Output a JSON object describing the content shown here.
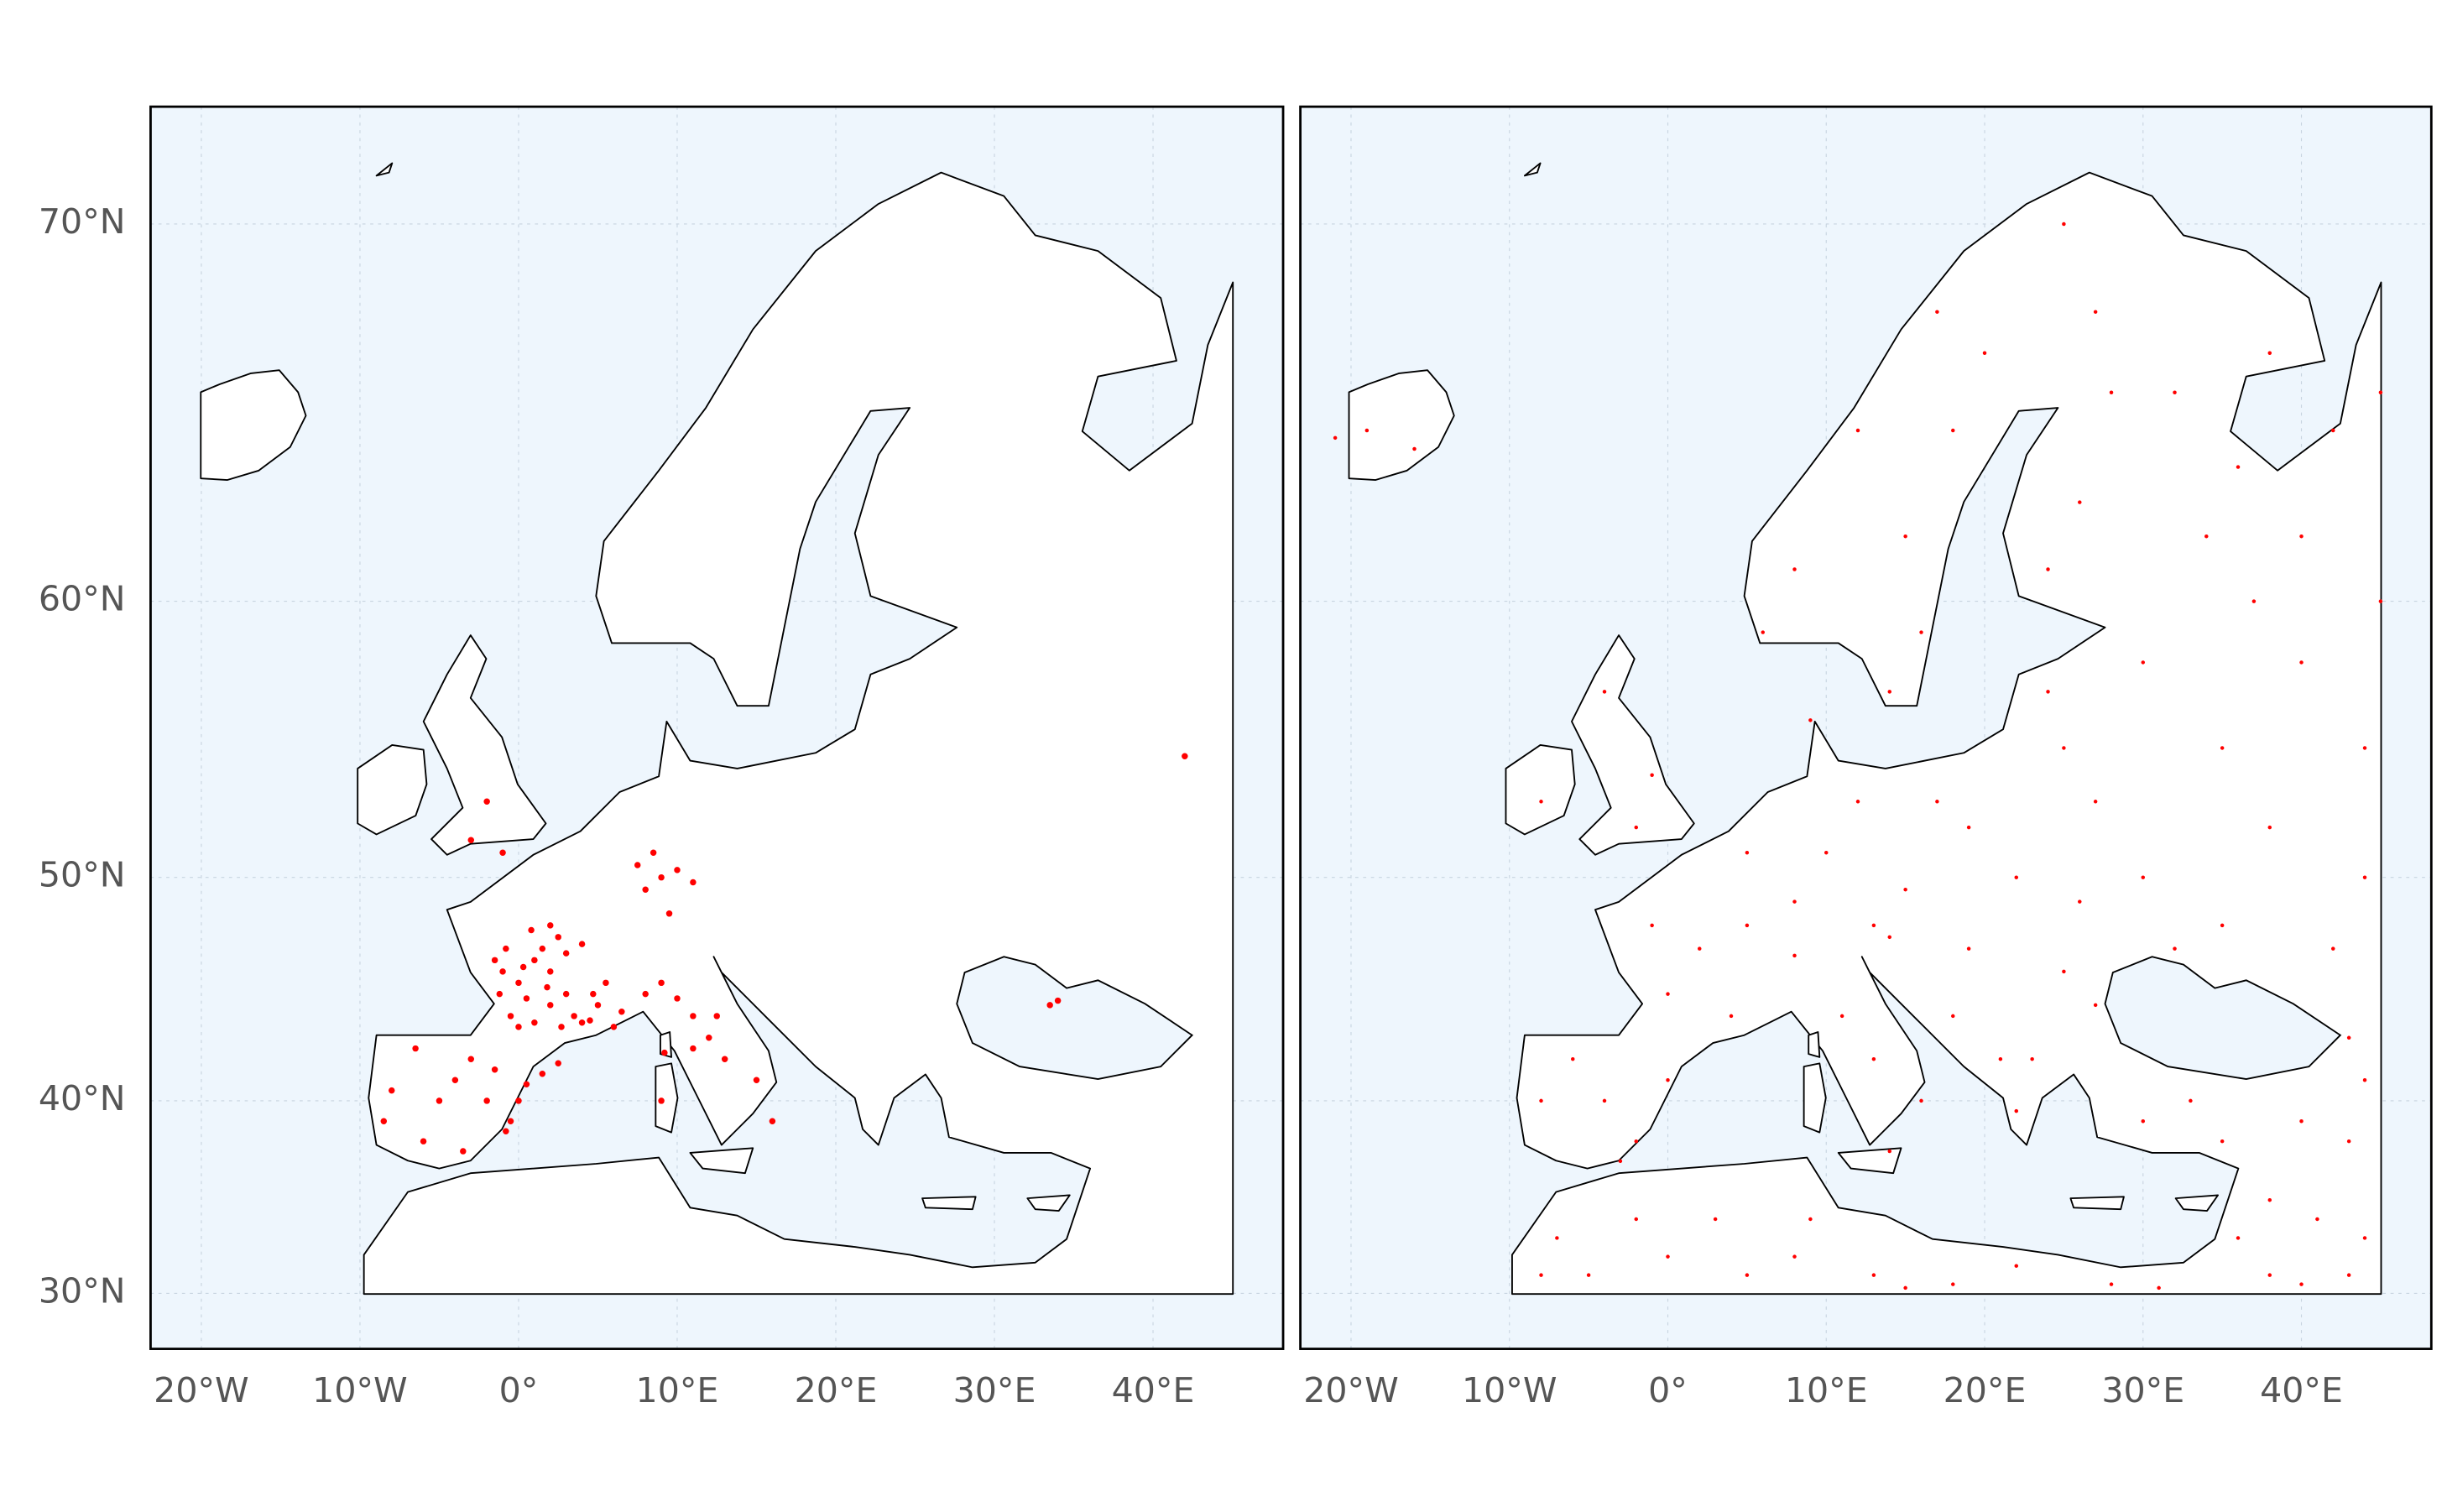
{
  "chart_data": {
    "type": "map",
    "xlim": [
      -23.2,
      48.2
    ],
    "ylim": [
      26.9,
      72.4
    ],
    "xticks": [
      {
        "value": -20,
        "label": "20°W"
      },
      {
        "value": -10,
        "label": "10°W"
      },
      {
        "value": 0,
        "label": "0°"
      },
      {
        "value": 10,
        "label": "10°E"
      },
      {
        "value": 20,
        "label": "20°E"
      },
      {
        "value": 30,
        "label": "30°E"
      },
      {
        "value": 40,
        "label": "40°E"
      }
    ],
    "yticks": [
      {
        "value": 70,
        "label": "70°N"
      },
      {
        "value": 60,
        "label": "60°N"
      },
      {
        "value": 50,
        "label": "50°N"
      },
      {
        "value": 40,
        "label": "40°N"
      },
      {
        "value": 30,
        "label": "30°N"
      }
    ],
    "grid": true,
    "color": "#ff0000",
    "panels": [
      {
        "points": {
          "lon": [
            -1,
            0,
            0.5,
            1,
            1.5,
            2,
            2.5,
            3,
            3.5,
            4,
            4.5,
            5,
            5.5,
            -1.2,
            -0.5,
            0,
            1,
            2,
            3,
            4,
            -0.8,
            0.3,
            1.8,
            2.7,
            6,
            6.5,
            -1.5,
            0.8,
            2,
            4.7,
            0,
            -0.5,
            -0.8,
            0.5,
            1.5,
            2.5,
            -1.5,
            -3,
            -4,
            -5,
            -6,
            -3.5,
            -2,
            -6.5,
            8,
            9,
            10,
            11,
            9.5,
            8.5,
            7.5,
            8,
            9,
            10,
            11,
            12,
            13,
            15,
            16,
            11,
            12.5,
            9,
            9.2,
            -1,
            -2,
            -3,
            34,
            33.5,
            -8.5,
            -8,
            42
          ],
          "lat": [
            46,
            45.5,
            44.8,
            46.5,
            47,
            46,
            47.5,
            45,
            44,
            43.7,
            43.8,
            44.5,
            45.5,
            45,
            44,
            43.5,
            43.7,
            44.5,
            46.8,
            47.2,
            47,
            46.2,
            45.3,
            43.5,
            43.5,
            44.2,
            46.5,
            47.8,
            48,
            45,
            40,
            39,
            38.5,
            40.8,
            41.3,
            41.8,
            41.5,
            42,
            41,
            40,
            38,
            37.5,
            40,
            42.5,
            49.5,
            50,
            50.3,
            49.8,
            48.5,
            51,
            50.5,
            45,
            45.5,
            44.8,
            44,
            43,
            42,
            41,
            39,
            42.5,
            44,
            40,
            42.3,
            51,
            53,
            51.5,
            44.7,
            44.5,
            39,
            40.5,
            54.7
          ]
        }
      },
      {
        "points": {
          "lon": [
            -19,
            -16,
            -21,
            -8,
            -2,
            -1,
            -4,
            -8,
            -4,
            -2,
            -6,
            0,
            -3,
            2,
            0,
            4,
            5,
            -1,
            5,
            10,
            8,
            12,
            13,
            9,
            8,
            12,
            17,
            25,
            6,
            15,
            18,
            14,
            16,
            20,
            26,
            28,
            24,
            27,
            24,
            25,
            19,
            22,
            17,
            15,
            14,
            8,
            11,
            13,
            16,
            14,
            19,
            25,
            27,
            18,
            21,
            23,
            22,
            30,
            35,
            26,
            32,
            27,
            30,
            35,
            40,
            33,
            43,
            35,
            40,
            45,
            38,
            44,
            42,
            30,
            34,
            42,
            38,
            45,
            36,
            32,
            40,
            44,
            37,
            43,
            44,
            -7,
            -5,
            -8,
            0,
            3,
            5,
            8,
            -2,
            9,
            13,
            18,
            22,
            15,
            28,
            31,
            36,
            38,
            38,
            41,
            44,
            43,
            40
          ],
          "lat": [
            65,
            64.5,
            64.8,
            53,
            52,
            54,
            57,
            40,
            40,
            38,
            42,
            41,
            37,
            47,
            45,
            44,
            48,
            48,
            51,
            51,
            49,
            53,
            48,
            56,
            61,
            65,
            68,
            70,
            59,
            62,
            65,
            57,
            59,
            67,
            63,
            66,
            61,
            68,
            57,
            55,
            52,
            50,
            53,
            49.5,
            47.5,
            46.7,
            44,
            42,
            40,
            37.5,
            47,
            46,
            44.5,
            44,
            42,
            42,
            39.5,
            50,
            48,
            49,
            47,
            53,
            39,
            38,
            39,
            40,
            38,
            55,
            58,
            60,
            52,
            50,
            47,
            58,
            62,
            65,
            67,
            66,
            64,
            66,
            62,
            55,
            60,
            43,
            41,
            33,
            31,
            31,
            32,
            34,
            31,
            32,
            34,
            34,
            31,
            30.5,
            31.5,
            30.3,
            30.5,
            30.3,
            33,
            31,
            35,
            34,
            33,
            31,
            30.5
          ]
        }
      }
    ]
  }
}
